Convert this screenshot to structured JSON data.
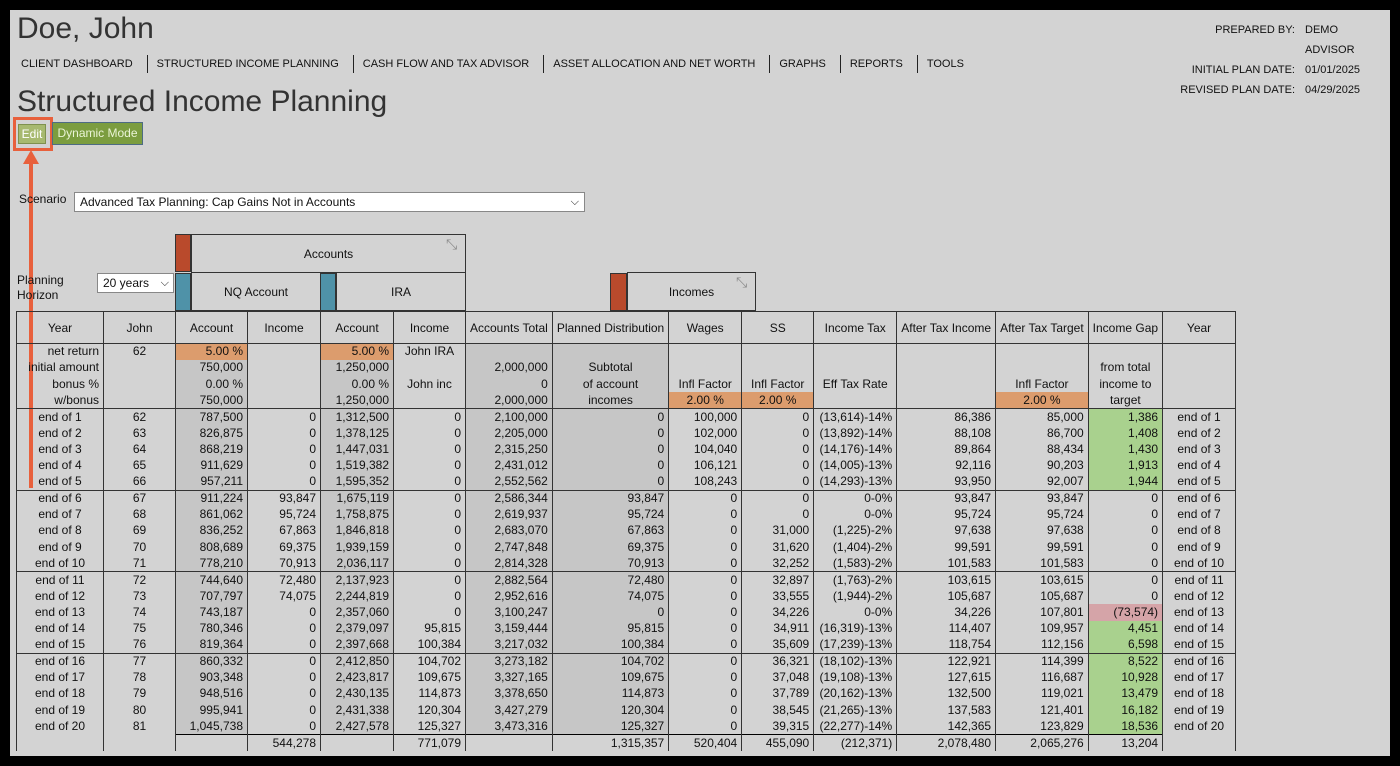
{
  "client_name": "Doe, John",
  "prepared": [
    {
      "label": "PREPARED BY:",
      "value": "DEMO ADVISOR"
    },
    {
      "label": "INITIAL PLAN DATE:",
      "value": "01/01/2025"
    },
    {
      "label": "REVISED PLAN DATE:",
      "value": "04/29/2025"
    }
  ],
  "nav": [
    "CLIENT DASHBOARD",
    "STRUCTURED INCOME PLANNING",
    "CASH FLOW AND TAX ADVISOR",
    "ASSET ALLOCATION AND NET WORTH",
    "GRAPHS",
    "REPORTS",
    "TOOLS"
  ],
  "page_title": "Structured Income Planning",
  "buttons": {
    "edit": "Edit",
    "dynamic": "Dynamic Mode"
  },
  "scenario": {
    "label": "Scenario",
    "value": "Advanced Tax Planning: Cap Gains Not in Accounts"
  },
  "horizon": {
    "label": "Planning Horizon",
    "value": "20 years"
  },
  "groups": {
    "accounts": "Accounts",
    "nq_account": "NQ Account",
    "ira": "IRA",
    "incomes": "Incomes"
  },
  "colors": {
    "red": "#b94a2c",
    "teal": "#4f92a8",
    "orange": "#dc9c6d",
    "green": "#a9d18e",
    "pink": "#d5a4a8"
  },
  "icons": {
    "collapse": "collapse-arrows-icon"
  },
  "columns": [
    "Year",
    "John",
    "Account",
    "Income",
    "Account",
    "Income",
    "Accounts Total",
    "Planned Distribution",
    "Wages",
    "SS",
    "Income Tax",
    "After Tax Income",
    "After Tax Target",
    "Income Gap",
    "Year"
  ],
  "params": [
    [
      "net return",
      "62",
      "5.00  %",
      "",
      "5.00  %",
      "John IRA",
      "",
      "",
      "",
      "",
      "",
      "",
      "",
      "",
      ""
    ],
    [
      "initial amount",
      "",
      "750,000",
      "",
      "1,250,000",
      "",
      "2,000,000",
      "Subtotal",
      "",
      "",
      "",
      "",
      "",
      "from total",
      ""
    ],
    [
      "bonus %",
      "",
      "0.00  %",
      "",
      "0.00  %",
      "John inc",
      "0",
      "of account",
      "Infl Factor",
      "Infl Factor",
      "Eff Tax Rate",
      "",
      "Infl Factor",
      "income to",
      ""
    ],
    [
      "w/bonus",
      "",
      "750,000",
      "",
      "1,250,000",
      "",
      "2,000,000",
      "incomes",
      "2.00  %",
      "2.00  %",
      "",
      "",
      "2.00  %",
      "target",
      ""
    ]
  ],
  "rows": [
    [
      "end of 1",
      "62",
      "787,500",
      "0",
      "1,312,500",
      "0",
      "2,100,000",
      "0",
      "100,000",
      "0",
      "(13,614)-14%",
      "86,386",
      "85,000",
      "1,386",
      "end of 1"
    ],
    [
      "end of 2",
      "63",
      "826,875",
      "0",
      "1,378,125",
      "0",
      "2,205,000",
      "0",
      "102,000",
      "0",
      "(13,892)-14%",
      "88,108",
      "86,700",
      "1,408",
      "end of 2"
    ],
    [
      "end of 3",
      "64",
      "868,219",
      "0",
      "1,447,031",
      "0",
      "2,315,250",
      "0",
      "104,040",
      "0",
      "(14,176)-14%",
      "89,864",
      "88,434",
      "1,430",
      "end of 3"
    ],
    [
      "end of 4",
      "65",
      "911,629",
      "0",
      "1,519,382",
      "0",
      "2,431,012",
      "0",
      "106,121",
      "0",
      "(14,005)-13%",
      "92,116",
      "90,203",
      "1,913",
      "end of 4"
    ],
    [
      "end of 5",
      "66",
      "957,211",
      "0",
      "1,595,352",
      "0",
      "2,552,562",
      "0",
      "108,243",
      "0",
      "(14,293)-13%",
      "93,950",
      "92,007",
      "1,944",
      "end of 5"
    ],
    [
      "end of 6",
      "67",
      "911,224",
      "93,847",
      "1,675,119",
      "0",
      "2,586,344",
      "93,847",
      "0",
      "0",
      "0-0%",
      "93,847",
      "93,847",
      "0",
      "end of 6"
    ],
    [
      "end of 7",
      "68",
      "861,062",
      "95,724",
      "1,758,875",
      "0",
      "2,619,937",
      "95,724",
      "0",
      "0",
      "0-0%",
      "95,724",
      "95,724",
      "0",
      "end of 7"
    ],
    [
      "end of 8",
      "69",
      "836,252",
      "67,863",
      "1,846,818",
      "0",
      "2,683,070",
      "67,863",
      "0",
      "31,000",
      "(1,225)-2%",
      "97,638",
      "97,638",
      "0",
      "end of 8"
    ],
    [
      "end of 9",
      "70",
      "808,689",
      "69,375",
      "1,939,159",
      "0",
      "2,747,848",
      "69,375",
      "0",
      "31,620",
      "(1,404)-2%",
      "99,591",
      "99,591",
      "0",
      "end of 9"
    ],
    [
      "end of 10",
      "71",
      "778,210",
      "70,913",
      "2,036,117",
      "0",
      "2,814,328",
      "70,913",
      "0",
      "32,252",
      "(1,583)-2%",
      "101,583",
      "101,583",
      "0",
      "end of 10"
    ],
    [
      "end of 11",
      "72",
      "744,640",
      "72,480",
      "2,137,923",
      "0",
      "2,882,564",
      "72,480",
      "0",
      "32,897",
      "(1,763)-2%",
      "103,615",
      "103,615",
      "0",
      "end of 11"
    ],
    [
      "end of 12",
      "73",
      "707,797",
      "74,075",
      "2,244,819",
      "0",
      "2,952,616",
      "74,075",
      "0",
      "33,555",
      "(1,944)-2%",
      "105,687",
      "105,687",
      "0",
      "end of 12"
    ],
    [
      "end of 13",
      "74",
      "743,187",
      "0",
      "2,357,060",
      "0",
      "3,100,247",
      "0",
      "0",
      "34,226",
      "0-0%",
      "34,226",
      "107,801",
      "(73,574)",
      "end of 13"
    ],
    [
      "end of 14",
      "75",
      "780,346",
      "0",
      "2,379,097",
      "95,815",
      "3,159,444",
      "95,815",
      "0",
      "34,911",
      "(16,319)-13%",
      "114,407",
      "109,957",
      "4,451",
      "end of 14"
    ],
    [
      "end of 15",
      "76",
      "819,364",
      "0",
      "2,397,668",
      "100,384",
      "3,217,032",
      "100,384",
      "0",
      "35,609",
      "(17,239)-13%",
      "118,754",
      "112,156",
      "6,598",
      "end of 15"
    ],
    [
      "end of 16",
      "77",
      "860,332",
      "0",
      "2,412,850",
      "104,702",
      "3,273,182",
      "104,702",
      "0",
      "36,321",
      "(18,102)-13%",
      "122,921",
      "114,399",
      "8,522",
      "end of 16"
    ],
    [
      "end of 17",
      "78",
      "903,348",
      "0",
      "2,423,817",
      "109,675",
      "3,327,165",
      "109,675",
      "0",
      "37,048",
      "(19,108)-13%",
      "127,615",
      "116,687",
      "10,928",
      "end of 17"
    ],
    [
      "end of 18",
      "79",
      "948,516",
      "0",
      "2,430,135",
      "114,873",
      "3,378,650",
      "114,873",
      "0",
      "37,789",
      "(20,162)-13%",
      "132,500",
      "119,021",
      "13,479",
      "end of 18"
    ],
    [
      "end of 19",
      "80",
      "995,941",
      "0",
      "2,431,338",
      "120,304",
      "3,427,279",
      "120,304",
      "0",
      "38,545",
      "(21,265)-13%",
      "137,583",
      "121,401",
      "16,182",
      "end of 19"
    ],
    [
      "end of 20",
      "81",
      "1,045,738",
      "0",
      "2,427,578",
      "125,327",
      "3,473,316",
      "125,327",
      "0",
      "39,315",
      "(22,277)-14%",
      "142,365",
      "123,829",
      "18,536",
      "end of 20"
    ]
  ],
  "totals": [
    "",
    "",
    "",
    "544,278",
    "",
    "771,079",
    "",
    "1,315,357",
    "520,404",
    "455,090",
    "(212,371)",
    "2,078,480",
    "2,065,276",
    "13,204",
    ""
  ]
}
